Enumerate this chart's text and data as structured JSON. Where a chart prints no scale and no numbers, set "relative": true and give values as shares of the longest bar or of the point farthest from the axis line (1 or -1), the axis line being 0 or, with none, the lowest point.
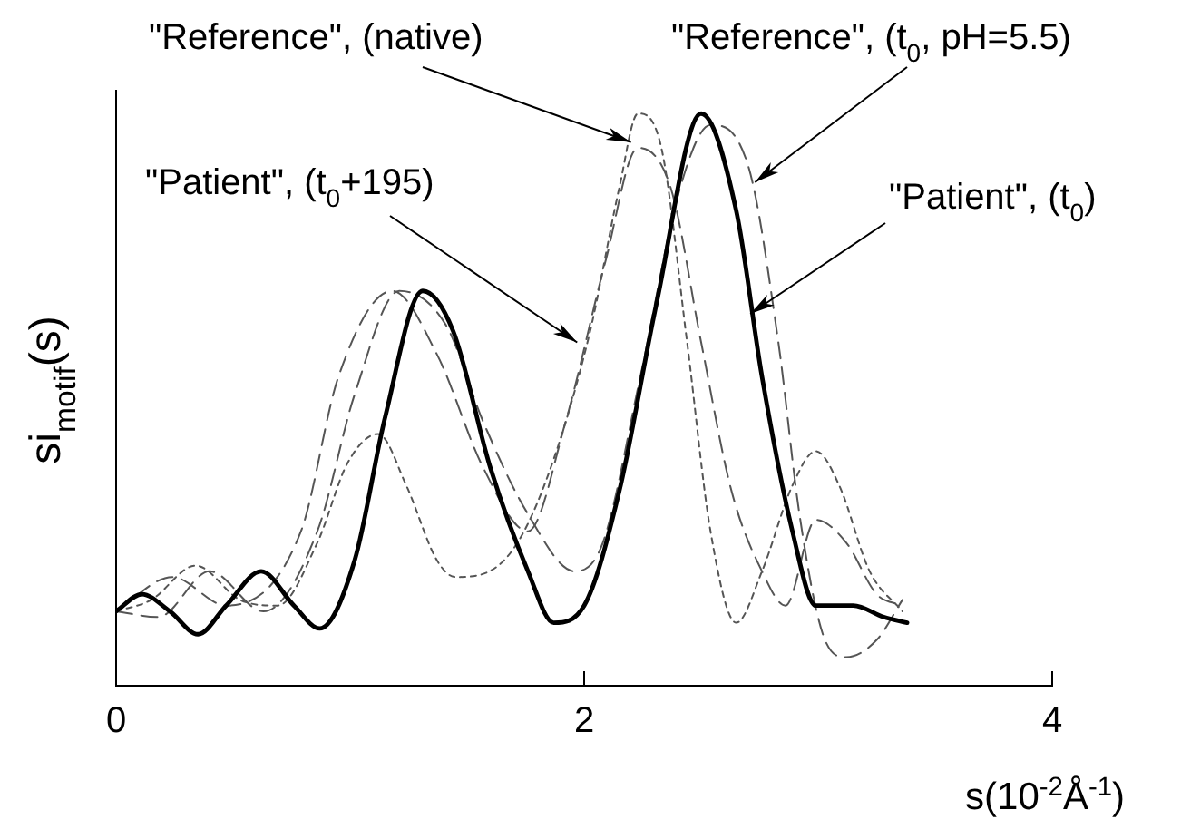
{
  "chart_data": {
    "type": "line",
    "relative": true,
    "xlabel": "s(10$^{-2}$Å$^{-1}$)",
    "ylabel": "si$_{motif}$(s)",
    "xlim": [
      0,
      4
    ],
    "xticks": [
      0,
      2,
      4
    ],
    "grid": false,
    "legend": false,
    "marker": "none",
    "annotations": [
      {
        "text": "\"Reference\", (native)",
        "x": 2.2,
        "y": 0.95
      },
      {
        "text": "\"Reference\", (t$_{0}$, pH=5.5)",
        "x": 2.73,
        "y": 0.88
      },
      {
        "text": "\"Patient\", (t$_{0}$+195)",
        "x": 1.97,
        "y": 0.6
      },
      {
        "text": "\"Patient\", (t$_{0}$)",
        "x": 2.71,
        "y": 0.65
      }
    ],
    "series": [
      {
        "color": "#000000",
        "line_style": "solid",
        "x": [
          0,
          0.11,
          0.23,
          0.35,
          0.47,
          0.62,
          0.76,
          0.87,
          1.02,
          1.15,
          1.31,
          1.44,
          1.6,
          1.76,
          1.87,
          2.0,
          2.15,
          2.31,
          2.5,
          2.65,
          2.76,
          2.89,
          2.99,
          3.15,
          3.28,
          3.38
        ],
        "values": [
          0.13,
          0.16,
          0.13,
          0.09,
          0.14,
          0.2,
          0.14,
          0.1,
          0.22,
          0.47,
          0.69,
          0.62,
          0.38,
          0.2,
          0.11,
          0.14,
          0.34,
          0.67,
          1.0,
          0.83,
          0.54,
          0.27,
          0.14,
          0.14,
          0.12,
          0.11
        ]
      },
      {
        "color": "#555555",
        "line_style": "dotted",
        "x": [
          0,
          0.15,
          0.34,
          0.53,
          0.69,
          0.86,
          0.99,
          1.12,
          1.24,
          1.37,
          1.45,
          1.66,
          1.82,
          2.02,
          2.15,
          2.23,
          2.33,
          2.44,
          2.54,
          2.65,
          2.76,
          2.89,
          2.99,
          3.09,
          3.22,
          3.36
        ],
        "values": [
          0.13,
          0.15,
          0.21,
          0.15,
          0.14,
          0.25,
          0.39,
          0.44,
          0.35,
          0.22,
          0.19,
          0.22,
          0.34,
          0.61,
          0.87,
          1.0,
          0.94,
          0.6,
          0.27,
          0.11,
          0.2,
          0.35,
          0.41,
          0.35,
          0.2,
          0.13
        ]
      },
      {
        "color": "#555555",
        "line_style": "dashed",
        "x": [
          0,
          0.24,
          0.47,
          0.79,
          0.95,
          1.18,
          1.37,
          1.57,
          1.76,
          1.92,
          2.09,
          2.23,
          2.37,
          2.5,
          2.63,
          2.76,
          2.86,
          2.99,
          3.12,
          3.25,
          3.36
        ],
        "values": [
          0.13,
          0.19,
          0.14,
          0.27,
          0.54,
          0.69,
          0.58,
          0.38,
          0.27,
          0.46,
          0.74,
          0.94,
          0.87,
          0.6,
          0.34,
          0.2,
          0.14,
          0.29,
          0.25,
          0.16,
          0.14
        ]
      },
      {
        "color": "#555555",
        "line_style": "dashed",
        "x": [
          0,
          0.18,
          0.4,
          0.63,
          0.86,
          1.02,
          1.21,
          1.41,
          1.57,
          1.76,
          1.96,
          2.08,
          2.24,
          2.41,
          2.54,
          2.7,
          2.83,
          2.92,
          3.02,
          3.12,
          3.25,
          3.36
        ],
        "values": [
          0.13,
          0.12,
          0.2,
          0.13,
          0.27,
          0.51,
          0.69,
          0.63,
          0.46,
          0.3,
          0.2,
          0.25,
          0.54,
          0.87,
          0.98,
          0.91,
          0.6,
          0.3,
          0.09,
          0.05,
          0.08,
          0.15
        ]
      }
    ]
  }
}
